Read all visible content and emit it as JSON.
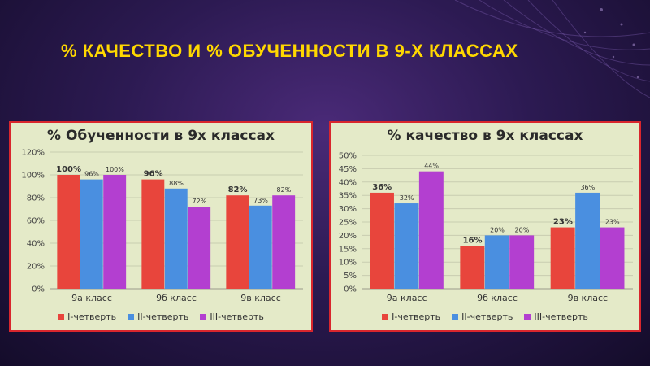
{
  "page": {
    "title": "% КАЧЕСТВО И % ОБУЧЕННОСТИ В 9-Х КЛАССАХ"
  },
  "colors": {
    "series": [
      "#e8453c",
      "#4a8fe0",
      "#b33fd0"
    ],
    "title": "#ffd700",
    "border": "#d9262d",
    "panel": "#e4eac8"
  },
  "chart_data": [
    {
      "type": "bar",
      "title": "% Обученности в 9х классах",
      "categories": [
        "9а класс",
        "9б класс",
        "9в класс"
      ],
      "series": [
        {
          "name": "I-четверть",
          "values": [
            100,
            96,
            82
          ],
          "labels": [
            "100%",
            "96%",
            "82%"
          ]
        },
        {
          "name": "II-четверть",
          "values": [
            96,
            88,
            73
          ],
          "labels": [
            "96%",
            "88%",
            "73%"
          ]
        },
        {
          "name": "III-четверть",
          "values": [
            100,
            72,
            82
          ],
          "labels": [
            "100%",
            "72%",
            "82%"
          ]
        }
      ],
      "yticks": [
        "0%",
        "20%",
        "40%",
        "60%",
        "80%",
        "100%",
        "120%"
      ],
      "ylim": [
        0,
        120
      ],
      "grid": true,
      "legend": "bottom"
    },
    {
      "type": "bar",
      "title": "% качество в 9х классах",
      "categories": [
        "9а класс",
        "9б класс",
        "9в класс"
      ],
      "series": [
        {
          "name": "I-четверть",
          "values": [
            36,
            16,
            23
          ],
          "labels": [
            "36%",
            "16%",
            "23%"
          ]
        },
        {
          "name": "II-четверть",
          "values": [
            32,
            20,
            36
          ],
          "labels": [
            "32%",
            "20%",
            "36%"
          ]
        },
        {
          "name": "III-четверть",
          "values": [
            44,
            20,
            23
          ],
          "labels": [
            "44%",
            "20%",
            "23%"
          ]
        }
      ],
      "yticks": [
        "0%",
        "5%",
        "10%",
        "15%",
        "20%",
        "25%",
        "30%",
        "35%",
        "40%",
        "45%",
        "50%"
      ],
      "ylim": [
        0,
        50
      ],
      "grid": true,
      "legend": "bottom"
    }
  ]
}
